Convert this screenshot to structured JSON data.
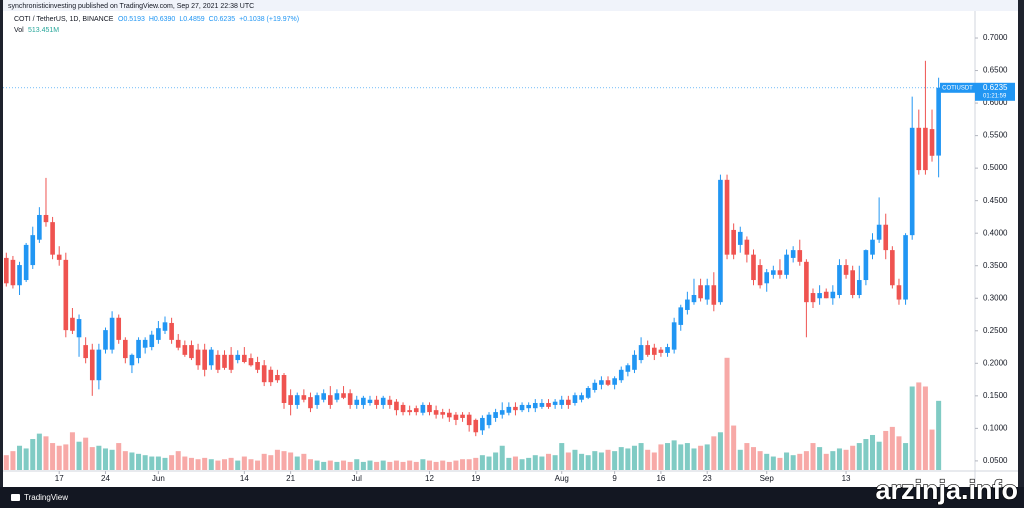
{
  "header": {
    "published": "synchronisticinvesting published on TradingView.com, Sep 27, 2021 22:38 UTC"
  },
  "chart_data": {
    "type": "candlestick",
    "title": "COTI / TetherUS, 1D, BINANCE",
    "legend_values": [
      "O0.5193",
      "H0.6390",
      "L0.4859",
      "C0.6235",
      "+0.1038 (+19.97%)"
    ],
    "volume_title": "Vol",
    "volume_label": "513.451M",
    "symbol_tag": "COTIUSDT",
    "last_price_label": "0.6235",
    "countdown": "01:21:59",
    "up_color": "#2196f3",
    "down_color": "#ef5350",
    "volume_up_color": "#80cbc4",
    "volume_down_color": "#f7a9a7",
    "open": [
      0.362,
      0.359,
      0.32,
      0.328,
      0.351,
      0.39,
      0.428,
      0.417,
      0.367,
      0.359,
      0.27,
      0.24,
      0.228,
      0.221,
      0.174,
      0.221,
      0.221,
      0.27,
      0.236,
      0.197,
      0.208,
      0.224,
      0.225,
      0.236,
      0.25,
      0.262,
      0.236,
      0.228,
      0.228,
      0.221,
      0.221,
      0.197,
      0.213,
      0.213,
      0.213,
      0.205,
      0.213,
      0.208,
      0.202,
      0.197,
      0.19,
      0.182,
      0.182,
      0.151,
      0.136,
      0.151,
      0.148,
      0.136,
      0.144,
      0.151,
      0.144,
      0.154,
      0.154,
      0.136,
      0.136,
      0.139,
      0.144,
      0.136,
      0.144,
      0.141,
      0.136,
      0.128,
      0.131,
      0.124,
      0.136,
      0.128,
      0.125,
      0.124,
      0.121,
      0.121,
      0.121,
      0.113,
      0.097,
      0.105,
      0.116,
      0.121,
      0.124,
      0.133,
      0.128,
      0.131,
      0.131,
      0.133,
      0.139,
      0.136,
      0.136,
      0.144,
      0.139,
      0.144,
      0.147,
      0.159,
      0.167,
      0.174,
      0.167,
      0.174,
      0.187,
      0.19,
      0.205,
      0.228,
      0.224,
      0.221,
      0.216,
      0.221,
      0.259,
      0.282,
      0.294,
      0.32,
      0.298,
      0.32,
      0.294,
      0.482,
      0.405,
      0.382,
      0.39,
      0.367,
      0.351,
      0.323,
      0.336,
      0.343,
      0.336,
      0.362,
      0.374,
      0.356,
      0.308,
      0.3,
      0.31,
      0.3,
      0.305,
      0.351,
      0.343,
      0.305,
      0.328,
      0.367,
      0.39,
      0.413,
      0.374,
      0.32,
      0.298,
      0.397,
      0.562,
      0.562,
      0.56,
      0.5193
    ],
    "high": [
      0.37,
      0.365,
      0.356,
      0.385,
      0.41,
      0.44,
      0.485,
      0.425,
      0.38,
      0.37,
      0.285,
      0.275,
      0.24,
      0.23,
      0.23,
      0.255,
      0.28,
      0.275,
      0.24,
      0.215,
      0.24,
      0.24,
      0.25,
      0.265,
      0.272,
      0.27,
      0.245,
      0.235,
      0.235,
      0.23,
      0.23,
      0.225,
      0.22,
      0.22,
      0.225,
      0.22,
      0.225,
      0.215,
      0.21,
      0.205,
      0.195,
      0.19,
      0.185,
      0.16,
      0.155,
      0.16,
      0.155,
      0.155,
      0.16,
      0.165,
      0.16,
      0.165,
      0.16,
      0.15,
      0.15,
      0.15,
      0.15,
      0.15,
      0.15,
      0.145,
      0.14,
      0.135,
      0.135,
      0.14,
      0.14,
      0.135,
      0.13,
      0.13,
      0.125,
      0.125,
      0.125,
      0.115,
      0.12,
      0.125,
      0.13,
      0.14,
      0.14,
      0.14,
      0.14,
      0.14,
      0.145,
      0.145,
      0.145,
      0.145,
      0.15,
      0.15,
      0.155,
      0.155,
      0.165,
      0.175,
      0.18,
      0.18,
      0.18,
      0.195,
      0.2,
      0.22,
      0.24,
      0.235,
      0.23,
      0.225,
      0.23,
      0.27,
      0.29,
      0.31,
      0.33,
      0.33,
      0.33,
      0.34,
      0.49,
      0.49,
      0.415,
      0.41,
      0.395,
      0.375,
      0.36,
      0.345,
      0.35,
      0.36,
      0.375,
      0.38,
      0.39,
      0.36,
      0.315,
      0.32,
      0.315,
      0.32,
      0.36,
      0.36,
      0.35,
      0.35,
      0.375,
      0.4,
      0.455,
      0.43,
      0.38,
      0.33,
      0.4,
      0.61,
      0.59,
      0.665,
      0.59,
      0.639
    ],
    "low": [
      0.318,
      0.315,
      0.305,
      0.325,
      0.345,
      0.385,
      0.41,
      0.36,
      0.35,
      0.24,
      0.245,
      0.21,
      0.2,
      0.15,
      0.16,
      0.215,
      0.215,
      0.23,
      0.2,
      0.185,
      0.2,
      0.215,
      0.22,
      0.23,
      0.245,
      0.23,
      0.22,
      0.21,
      0.205,
      0.19,
      0.18,
      0.19,
      0.185,
      0.19,
      0.185,
      0.2,
      0.2,
      0.195,
      0.185,
      0.165,
      0.165,
      0.17,
      0.13,
      0.12,
      0.13,
      0.14,
      0.125,
      0.13,
      0.14,
      0.13,
      0.14,
      0.145,
      0.13,
      0.13,
      0.13,
      0.135,
      0.13,
      0.13,
      0.13,
      0.12,
      0.12,
      0.12,
      0.12,
      0.12,
      0.12,
      0.115,
      0.115,
      0.11,
      0.105,
      0.11,
      0.095,
      0.088,
      0.09,
      0.1,
      0.11,
      0.115,
      0.12,
      0.12,
      0.125,
      0.125,
      0.125,
      0.13,
      0.13,
      0.13,
      0.13,
      0.13,
      0.135,
      0.14,
      0.145,
      0.155,
      0.16,
      0.165,
      0.16,
      0.17,
      0.18,
      0.185,
      0.2,
      0.21,
      0.205,
      0.21,
      0.21,
      0.215,
      0.25,
      0.275,
      0.29,
      0.295,
      0.29,
      0.28,
      0.29,
      0.36,
      0.36,
      0.37,
      0.355,
      0.32,
      0.315,
      0.31,
      0.33,
      0.33,
      0.33,
      0.355,
      0.35,
      0.24,
      0.285,
      0.29,
      0.3,
      0.29,
      0.3,
      0.33,
      0.3,
      0.3,
      0.32,
      0.36,
      0.385,
      0.36,
      0.315,
      0.29,
      0.29,
      0.39,
      0.49,
      0.49,
      0.51,
      0.4859
    ],
    "close": [
      0.323,
      0.32,
      0.351,
      0.382,
      0.397,
      0.428,
      0.417,
      0.367,
      0.359,
      0.251,
      0.25,
      0.268,
      0.208,
      0.174,
      0.221,
      0.251,
      0.27,
      0.236,
      0.208,
      0.213,
      0.236,
      0.236,
      0.244,
      0.254,
      0.263,
      0.236,
      0.224,
      0.213,
      0.208,
      0.197,
      0.19,
      0.221,
      0.19,
      0.193,
      0.19,
      0.213,
      0.202,
      0.197,
      0.19,
      0.171,
      0.171,
      0.174,
      0.139,
      0.136,
      0.151,
      0.144,
      0.131,
      0.151,
      0.154,
      0.136,
      0.154,
      0.147,
      0.136,
      0.144,
      0.147,
      0.144,
      0.136,
      0.147,
      0.136,
      0.128,
      0.125,
      0.125,
      0.125,
      0.136,
      0.125,
      0.121,
      0.121,
      0.117,
      0.113,
      0.116,
      0.105,
      0.094,
      0.116,
      0.121,
      0.125,
      0.128,
      0.133,
      0.128,
      0.136,
      0.136,
      0.139,
      0.139,
      0.133,
      0.141,
      0.144,
      0.136,
      0.151,
      0.151,
      0.162,
      0.17,
      0.174,
      0.167,
      0.177,
      0.19,
      0.197,
      0.213,
      0.228,
      0.213,
      0.213,
      0.216,
      0.225,
      0.263,
      0.286,
      0.298,
      0.305,
      0.3,
      0.32,
      0.29,
      0.482,
      0.367,
      0.367,
      0.402,
      0.367,
      0.328,
      0.32,
      0.34,
      0.343,
      0.336,
      0.367,
      0.374,
      0.356,
      0.294,
      0.294,
      0.308,
      0.3,
      0.31,
      0.351,
      0.336,
      0.305,
      0.328,
      0.374,
      0.39,
      0.413,
      0.374,
      0.32,
      0.298,
      0.397,
      0.562,
      0.497,
      0.497,
      0.519,
      0.6235
    ],
    "volume": [
      110,
      140,
      180,
      160,
      230,
      270,
      250,
      200,
      180,
      190,
      280,
      210,
      240,
      170,
      180,
      160,
      150,
      200,
      140,
      130,
      120,
      110,
      100,
      100,
      90,
      110,
      140,
      100,
      90,
      80,
      90,
      80,
      70,
      80,
      90,
      70,
      100,
      80,
      70,
      120,
      110,
      150,
      140,
      130,
      100,
      120,
      80,
      70,
      60,
      70,
      60,
      70,
      60,
      80,
      60,
      70,
      60,
      70,
      60,
      70,
      60,
      70,
      60,
      80,
      70,
      60,
      70,
      60,
      70,
      80,
      80,
      90,
      110,
      100,
      130,
      180,
      90,
      100,
      80,
      90,
      110,
      100,
      120,
      110,
      200,
      130,
      150,
      120,
      110,
      140,
      130,
      150,
      140,
      170,
      160,
      180,
      200,
      150,
      130,
      190,
      200,
      220,
      190,
      200,
      160,
      180,
      190,
      250,
      280,
      833,
      330,
      150,
      200,
      170,
      140,
      120,
      100,
      90,
      130,
      110,
      120,
      140,
      200,
      170,
      120,
      140,
      160,
      150,
      180,
      200,
      230,
      260,
      210,
      290,
      320,
      250,
      200,
      620,
      650,
      620,
      300,
      513.451
    ],
    "volume_lim": [
      0,
      3400
    ],
    "xlim": [
      -0.5,
      146.5
    ],
    "xticks": [
      {
        "value": 8,
        "label": "17"
      },
      {
        "value": 15,
        "label": "24"
      },
      {
        "value": 23,
        "label": "Jun"
      },
      {
        "value": 36,
        "label": "14"
      },
      {
        "value": 43,
        "label": "21"
      },
      {
        "value": 53,
        "label": "Jul"
      },
      {
        "value": 64,
        "label": "12"
      },
      {
        "value": 71,
        "label": "19"
      },
      {
        "value": 84,
        "label": "Aug"
      },
      {
        "value": 92,
        "label": "9"
      },
      {
        "value": 99,
        "label": "16"
      },
      {
        "value": 106,
        "label": "23"
      },
      {
        "value": 115,
        "label": "Sep"
      },
      {
        "value": 127,
        "label": "13"
      }
    ],
    "ylim": [
      0.036,
      0.74
    ],
    "yticks": [
      {
        "value": 0.7,
        "label": "0.7000"
      },
      {
        "value": 0.65,
        "label": "0.6500"
      },
      {
        "value": 0.6,
        "label": "0.6000"
      },
      {
        "value": 0.55,
        "label": "0.5500"
      },
      {
        "value": 0.5,
        "label": "0.5000"
      },
      {
        "value": 0.45,
        "label": "0.4500"
      },
      {
        "value": 0.4,
        "label": "0.4000"
      },
      {
        "value": 0.35,
        "label": "0.3500"
      },
      {
        "value": 0.3,
        "label": "0.3000"
      },
      {
        "value": 0.25,
        "label": "0.2500"
      },
      {
        "value": 0.2,
        "label": "0.2000"
      },
      {
        "value": 0.15,
        "label": "0.1500"
      },
      {
        "value": 0.1,
        "label": "0.1000"
      },
      {
        "value": 0.05,
        "label": "0.0500"
      }
    ]
  },
  "footer": {
    "brand": "TradingView"
  },
  "watermark": "arzinja.info"
}
